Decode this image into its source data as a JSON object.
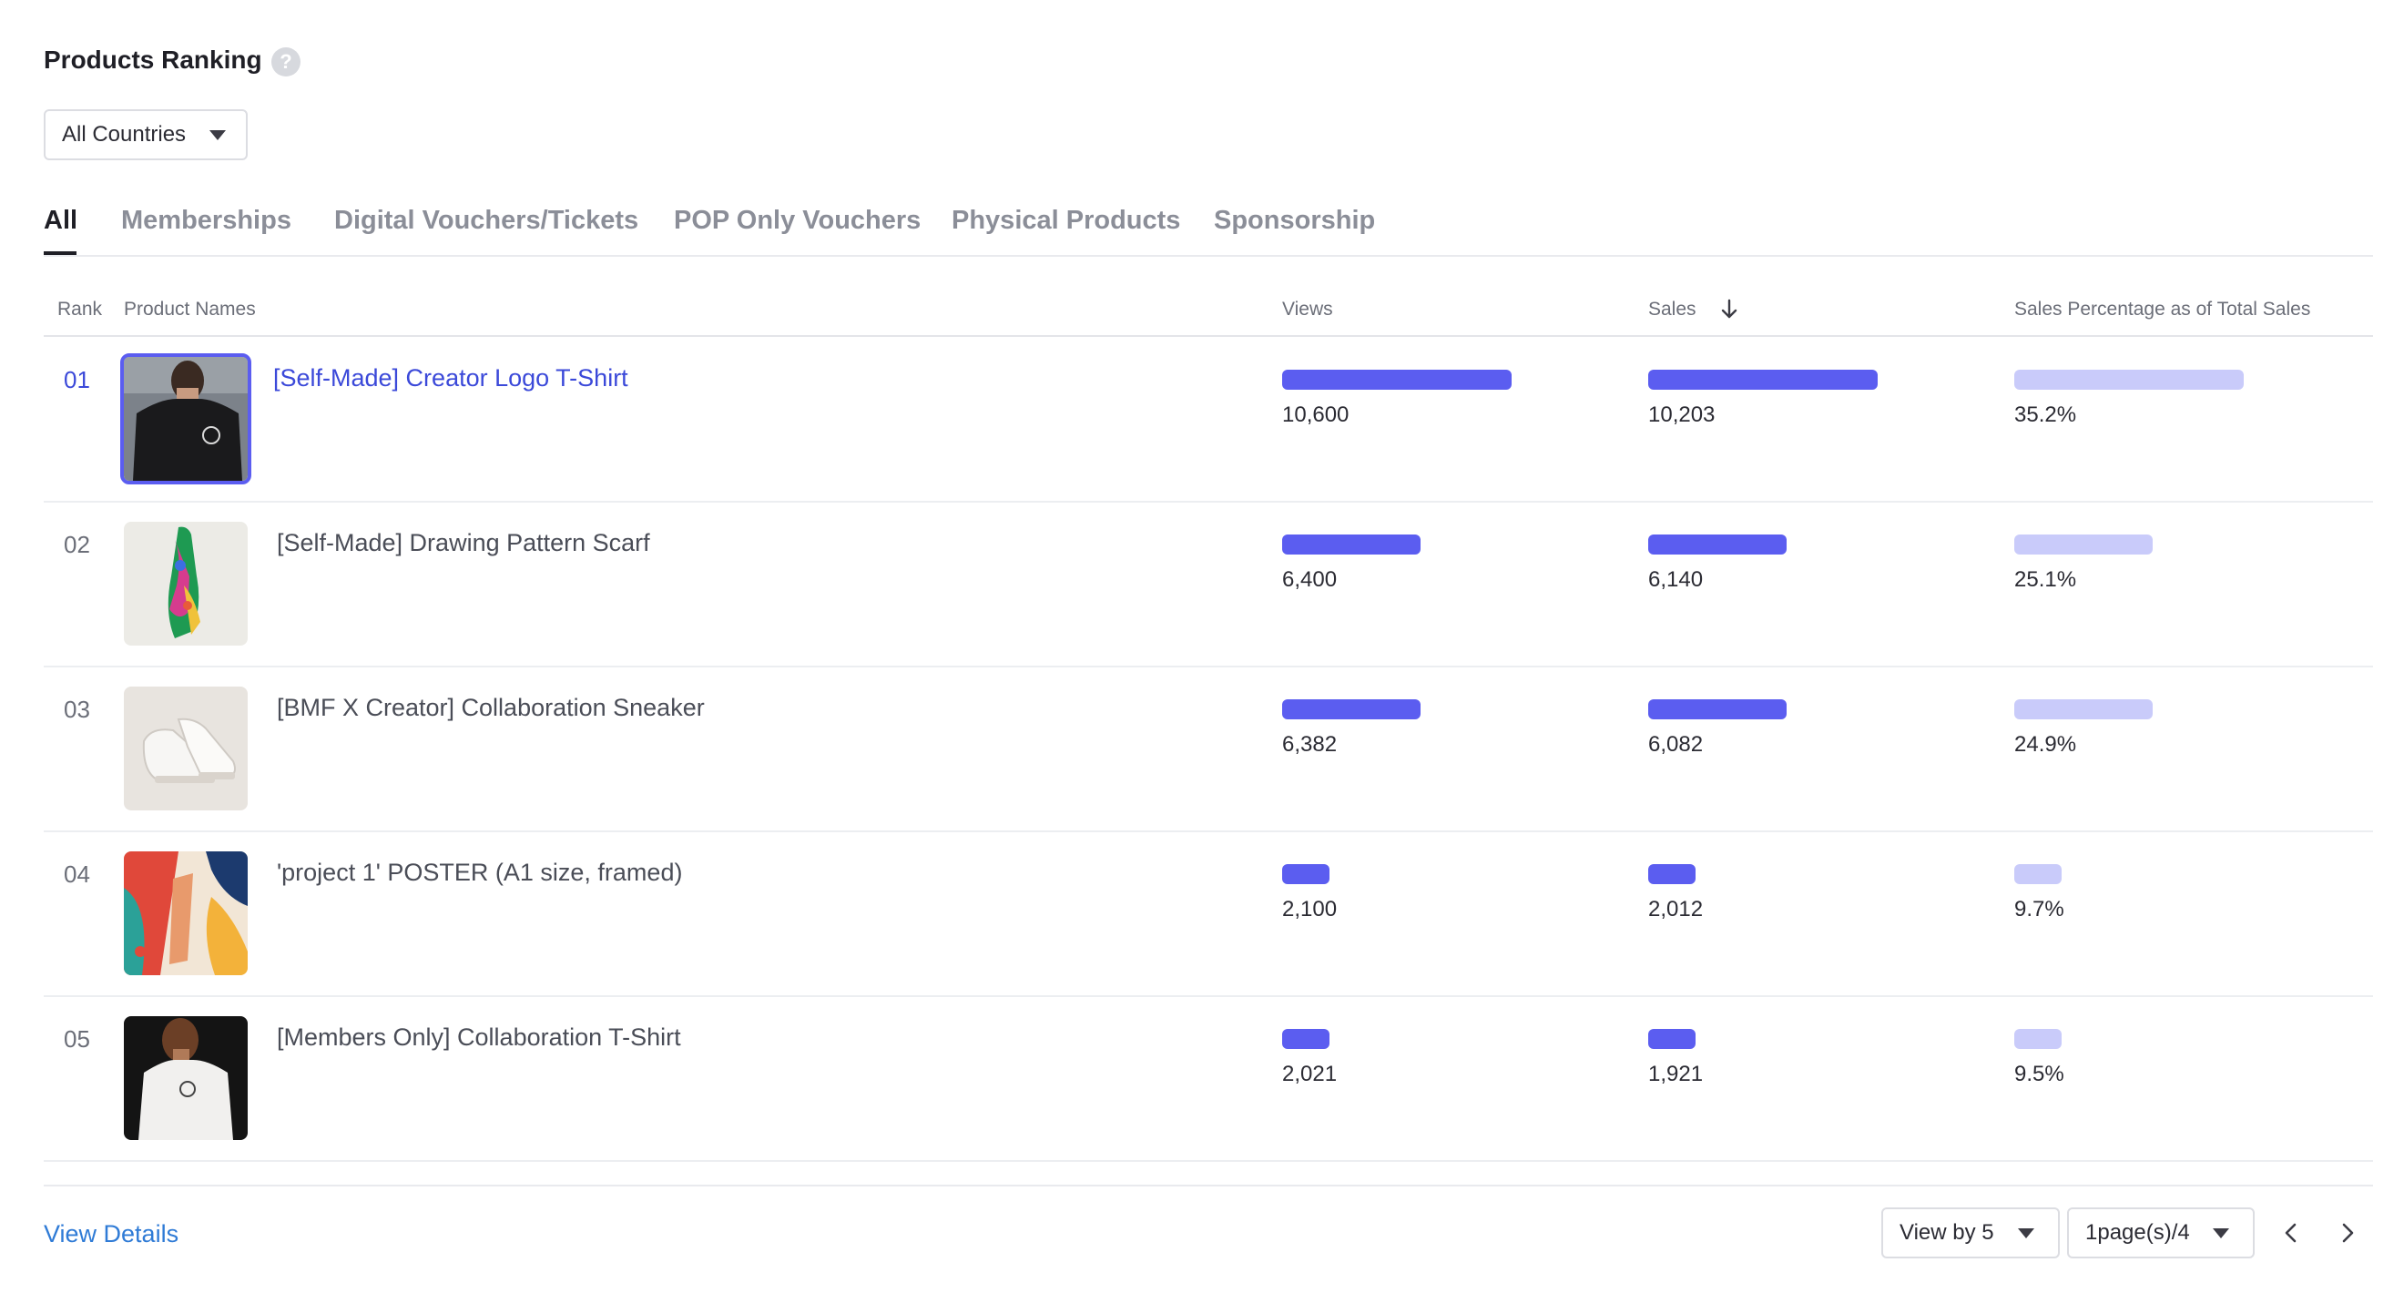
{
  "header": {
    "title": "Products Ranking",
    "help_glyph": "?"
  },
  "country_select": {
    "value": "All Countries"
  },
  "tabs": [
    {
      "label": "All",
      "active": true
    },
    {
      "label": "Memberships",
      "active": false
    },
    {
      "label": "Digital Vouchers/Tickets",
      "active": false
    },
    {
      "label": "POP Only Vouchers",
      "active": false
    },
    {
      "label": "Physical Products",
      "active": false
    },
    {
      "label": "Sponsorship",
      "active": false
    }
  ],
  "table": {
    "columns": {
      "rank": "Rank",
      "names": "Product Names",
      "views": "Views",
      "sales": "Sales",
      "percentage": "Sales Percentage as of Total Sales"
    },
    "sorted_by": "Sales",
    "rows": [
      {
        "rank": "01",
        "name": "[Self-Made] Creator Logo T-Shirt",
        "views": "10,600",
        "sales": "10,203",
        "percentage": "35.2%",
        "views_fraction": 1.0,
        "sales_fraction": 1.0,
        "percentage_fraction": 1.0,
        "image": "black-tshirt-thumbnail"
      },
      {
        "rank": "02",
        "name": "[Self-Made] Drawing Pattern Scarf",
        "views": "6,400",
        "sales": "6,140",
        "percentage": "25.1%",
        "views_fraction": 0.6,
        "sales_fraction": 0.6,
        "percentage_fraction": 0.6,
        "image": "scarf-thumbnail"
      },
      {
        "rank": "03",
        "name": "[BMF X Creator] Collaboration Sneaker",
        "views": "6,382",
        "sales": "6,082",
        "percentage": "24.9%",
        "views_fraction": 0.6,
        "sales_fraction": 0.6,
        "percentage_fraction": 0.6,
        "image": "sneaker-thumbnail"
      },
      {
        "rank": "04",
        "name": "'project 1' POSTER (A1 size, framed)",
        "views": "2,100",
        "sales": "2,012",
        "percentage": "9.7%",
        "views_fraction": 0.2,
        "sales_fraction": 0.2,
        "percentage_fraction": 0.2,
        "image": "poster-thumbnail"
      },
      {
        "rank": "05",
        "name": "[Members Only] Collaboration T-Shirt",
        "views": "2,021",
        "sales": "1,921",
        "percentage": "9.5%",
        "views_fraction": 0.2,
        "sales_fraction": 0.2,
        "percentage_fraction": 0.2,
        "image": "white-tshirt-thumbnail"
      }
    ]
  },
  "footer": {
    "view_details": "View Details",
    "view_by": "View by 5",
    "page": "1page(s)/4"
  },
  "colors": {
    "accent": "#5b5df0",
    "accent_light": "#c9cbfa",
    "link": "#2f7bd6",
    "active_link": "#3b49d9"
  }
}
